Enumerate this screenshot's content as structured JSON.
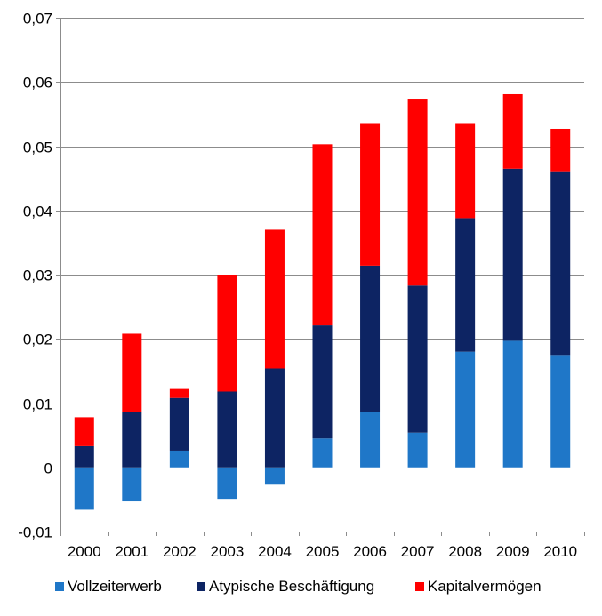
{
  "chart_data": {
    "type": "bar",
    "stacked": true,
    "title": "",
    "xlabel": "",
    "ylabel": "",
    "categories": [
      "2000",
      "2001",
      "2002",
      "2003",
      "2004",
      "2005",
      "2006",
      "2007",
      "2008",
      "2009",
      "2010"
    ],
    "ylim": [
      -0.01,
      0.07
    ],
    "yticks": [
      -0.01,
      0,
      0.01,
      0.02,
      0.03,
      0.04,
      0.05,
      0.06,
      0.07
    ],
    "ytick_labels": [
      "-0,01",
      "0",
      "0,01",
      "0,02",
      "0,03",
      "0,04",
      "0,05",
      "0,06",
      "0,07"
    ],
    "grid": "horizontal",
    "legend_position": "bottom",
    "series": [
      {
        "name": "Vollzeiterwerb",
        "color": "#1f77c8",
        "values": [
          -0.0066,
          -0.0053,
          0.0026,
          -0.0049,
          -0.0027,
          0.0045,
          0.0086,
          0.0054,
          0.018,
          0.0197,
          0.0175
        ]
      },
      {
        "name": "Atypische Beschäftigung",
        "color": "#0d2463",
        "values": [
          0.0033,
          0.0086,
          0.0082,
          0.0118,
          0.0154,
          0.0176,
          0.0228,
          0.0229,
          0.0208,
          0.0268,
          0.0286
        ]
      },
      {
        "name": "Kapitalvermögen",
        "color": "#ff0000",
        "values": [
          0.0045,
          0.0122,
          0.0014,
          0.0182,
          0.0216,
          0.0282,
          0.0222,
          0.0291,
          0.0148,
          0.0116,
          0.0066
        ]
      }
    ]
  }
}
